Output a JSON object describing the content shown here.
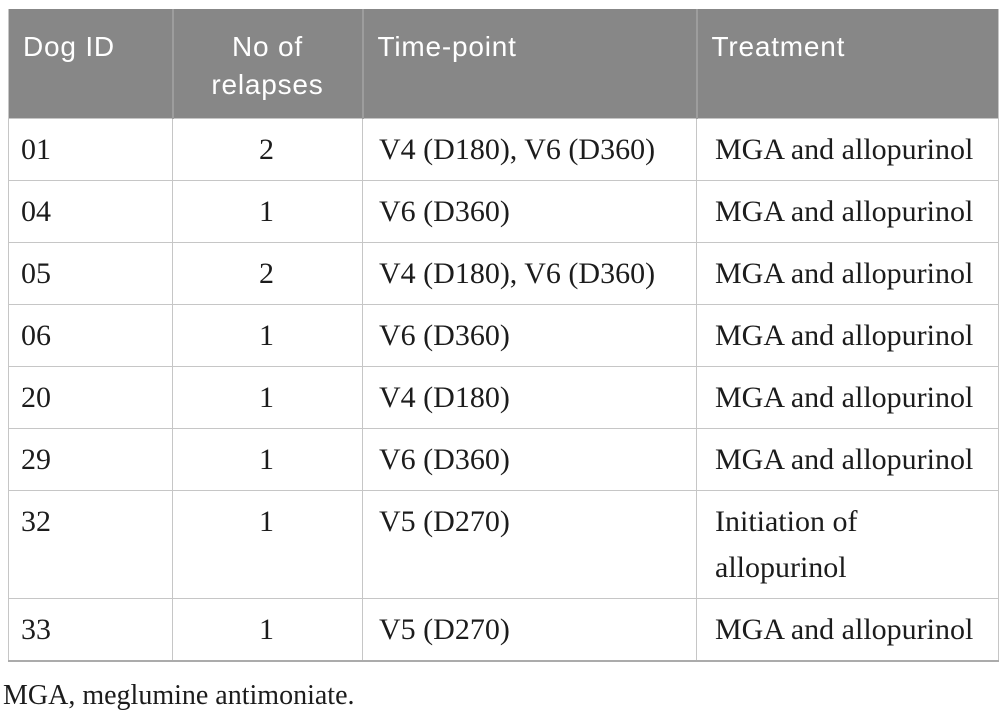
{
  "table": {
    "columns": [
      {
        "label": "Dog ID"
      },
      {
        "label": "No of relapses"
      },
      {
        "label": "Time-point"
      },
      {
        "label": "Treatment"
      }
    ],
    "rows": [
      {
        "dog_id": "01",
        "relapses": "2",
        "time_point": "V4 (D180), V6 (D360)",
        "treatment": "MGA and allopurinol"
      },
      {
        "dog_id": "04",
        "relapses": "1",
        "time_point": "V6 (D360)",
        "treatment": "MGA and allopurinol"
      },
      {
        "dog_id": "05",
        "relapses": "2",
        "time_point": "V4 (D180), V6 (D360)",
        "treatment": "MGA and allopurinol"
      },
      {
        "dog_id": "06",
        "relapses": "1",
        "time_point": "V6 (D360)",
        "treatment": "MGA and allopurinol"
      },
      {
        "dog_id": "20",
        "relapses": "1",
        "time_point": "V4 (D180)",
        "treatment": "MGA and allopurinol"
      },
      {
        "dog_id": "29",
        "relapses": "1",
        "time_point": "V6 (D360)",
        "treatment": "MGA and allopurinol"
      },
      {
        "dog_id": "32",
        "relapses": "1",
        "time_point": "V5 (D270)",
        "treatment": "Initiation of\nallopurinol"
      },
      {
        "dog_id": "33",
        "relapses": "1",
        "time_point": "V5 (D270)",
        "treatment": "MGA and allopurinol"
      }
    ],
    "footnote": "MGA, meglumine antimoniate."
  },
  "colors": {
    "header_bg": "#878787",
    "header_text": "#ffffff",
    "body_text": "#1c1c1c",
    "grid_line": "#c6c6c6",
    "header_separator": "#9d9d9d",
    "bottom_border": "#ababab"
  }
}
